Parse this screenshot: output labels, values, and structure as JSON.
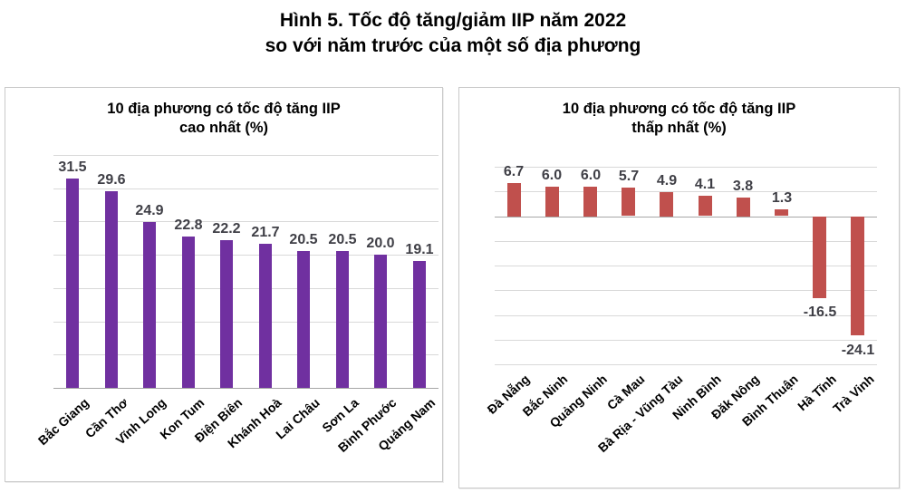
{
  "page": {
    "title_line1": "Hình 5. Tốc độ tăng/giảm IIP năm 2022",
    "title_line2": "so với năm trước của một số địa phương"
  },
  "colors": {
    "purple_bar": "#7030A0",
    "red_bar": "#C0504D",
    "gridline": "#D9D9D9",
    "axis_line": "#A6A6A6",
    "value_label": "#3F3F46",
    "category_label": "#000000",
    "panel_border": "#C9C9C9"
  },
  "chart_data": [
    {
      "type": "bar",
      "title_line1": "10 địa phương có tốc độ tăng IIP",
      "title_line2": "cao nhất (%)",
      "categories": [
        "Bắc Giang",
        "Cần Thơ",
        "Vĩnh Long",
        "Kon Tum",
        "Điện Biên",
        "Khánh Hoà",
        "Lai Châu",
        "Sơn La",
        "Bình Phước",
        "Quảng Nam"
      ],
      "values": [
        31.5,
        29.6,
        24.9,
        22.8,
        22.2,
        21.7,
        20.5,
        20.5,
        20.0,
        19.1
      ],
      "bar_color": "#7030A0",
      "ylim": [
        0,
        35
      ],
      "grid_step": 5,
      "grid": true,
      "legend": false,
      "value_labels": true,
      "value_label_decimals": 1
    },
    {
      "type": "bar",
      "title_line1": "10 địa phương có tốc độ tăng IIP",
      "title_line2": "thấp nhất (%)",
      "categories": [
        "Đà Nẵng",
        "Bắc Ninh",
        "Quảng Ninh",
        "Cà Mau",
        "Bà Rịa - Vũng Tàu",
        "Ninh Bình",
        "Đăk Nông",
        "Bình Thuận",
        "Hà Tĩnh",
        "Trà Vinh"
      ],
      "values": [
        6.7,
        6.0,
        6.0,
        5.7,
        4.9,
        4.1,
        3.8,
        1.3,
        -16.5,
        -24.1
      ],
      "bar_color": "#C0504D",
      "ylim": [
        -30,
        10
      ],
      "grid_step": 5,
      "grid": true,
      "legend": false,
      "value_labels": true,
      "value_label_decimals": 1
    }
  ]
}
